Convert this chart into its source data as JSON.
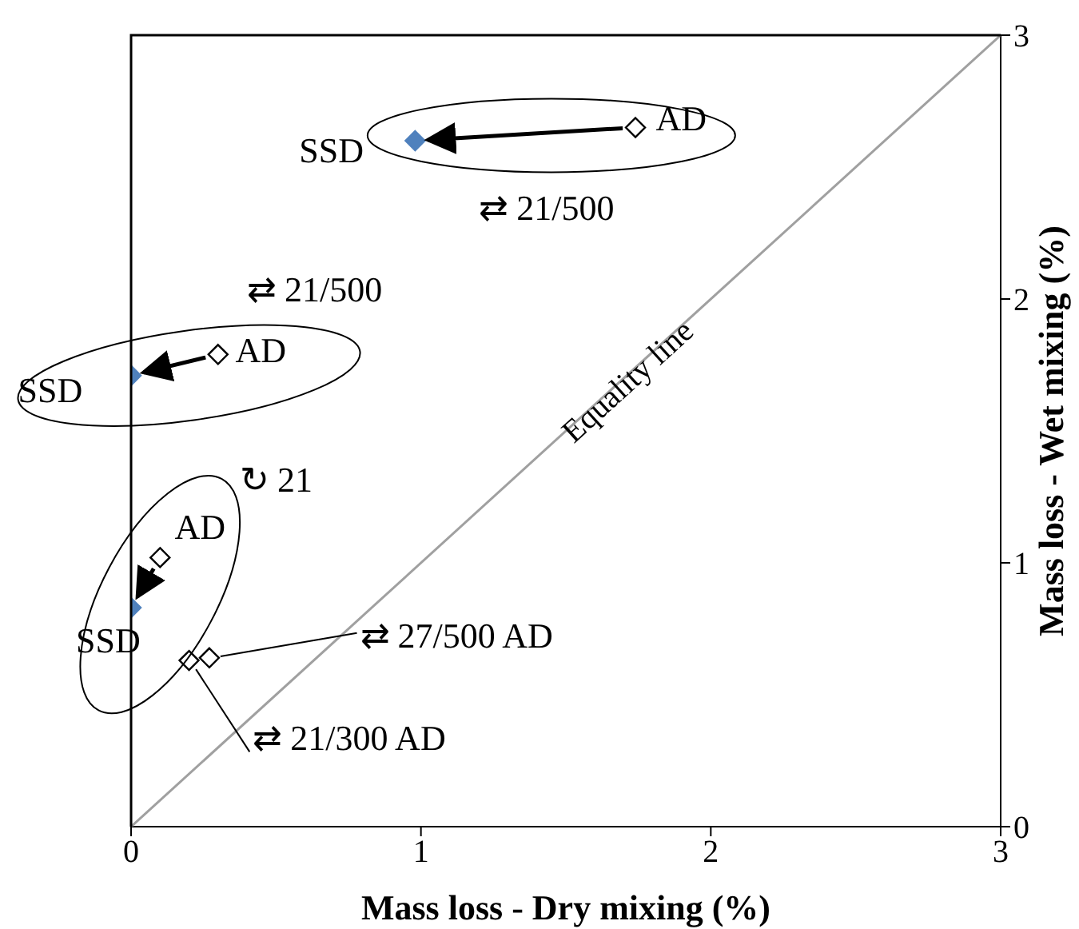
{
  "chart_data": {
    "type": "scatter",
    "xlabel": "Mass loss - Dry mixing (%)",
    "ylabel": "Mass loss - Wet mixing (%)",
    "xlim": [
      0,
      3
    ],
    "ylim": [
      0,
      3
    ],
    "xticks": [
      0,
      1,
      2,
      3
    ],
    "yticks": [
      0,
      1,
      2,
      3
    ],
    "marker": "diamond",
    "series": [
      {
        "type": "line",
        "color": "#a0a0a0",
        "marker": "none",
        "x": [
          0,
          3
        ],
        "values": [
          0,
          3
        ]
      },
      {
        "color": "#000000",
        "x": [
          1.74,
          0.3,
          0.1,
          0.2,
          0.27
        ],
        "values": [
          2.65,
          1.79,
          1.02,
          0.63,
          0.64
        ]
      },
      {
        "color": "#4f81bd",
        "x": [
          0.98,
          0,
          0
        ],
        "values": [
          2.6,
          1.71,
          0.83
        ]
      }
    ],
    "annotations": [
      "SSD",
      {
        "text": "AD",
        "x": 1.74,
        "y": 2.65
      },
      "⇄ 21/500",
      "⇄ 21/500",
      "SSD",
      "AD",
      "↻ 21",
      "AD",
      "SSD",
      {
        "text": "⇄ 27/500 AD",
        "x": 0.27,
        "y": 0.64
      },
      {
        "text": "⇄ 21/300 AD",
        "x": 0.2,
        "y": 0.63
      },
      "Equality line"
    ]
  }
}
